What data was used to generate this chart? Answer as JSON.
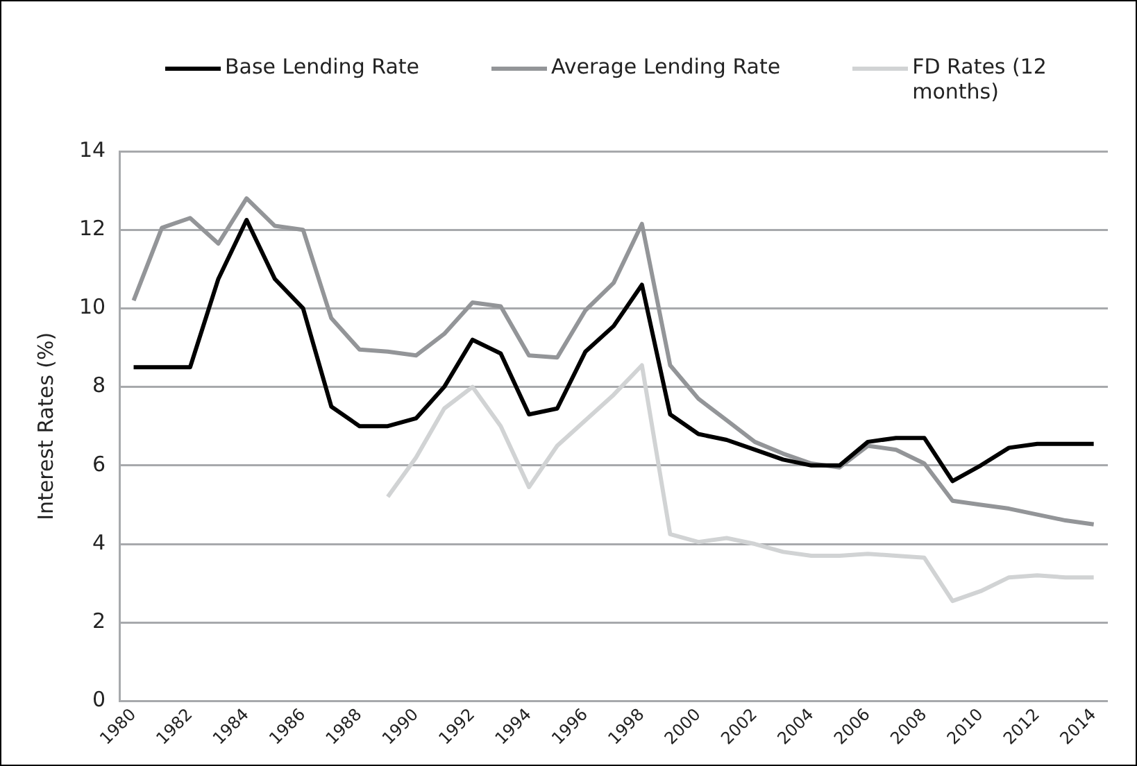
{
  "chart_data": {
    "type": "line",
    "ylabel": "Interest Rates (%)",
    "categories": [
      "1980",
      null,
      "1982",
      null,
      "1984",
      null,
      "1986",
      null,
      "1988",
      null,
      "1990",
      null,
      "1992",
      null,
      "1994",
      null,
      "1996",
      null,
      "1998",
      null,
      "2000",
      null,
      "2002",
      null,
      "2004",
      null,
      "2006",
      null,
      "2008",
      null,
      "2010",
      null,
      "2012",
      null,
      "2014"
    ],
    "series": [
      {
        "name": "Base Lending Rate",
        "color": "#000000",
        "values": [
          8.5,
          8.5,
          8.5,
          10.75,
          12.25,
          10.75,
          10.0,
          7.5,
          7.0,
          7.0,
          7.2,
          8.0,
          9.2,
          8.85,
          7.3,
          7.45,
          8.9,
          9.55,
          10.6,
          7.3,
          6.8,
          6.65,
          6.4,
          6.15,
          6.0,
          6.0,
          6.6,
          6.7,
          6.7,
          5.6,
          6.0,
          6.45,
          6.55,
          6.55,
          6.55
        ]
      },
      {
        "name": "Average Lending Rate",
        "color": "#939598",
        "values": [
          10.2,
          12.05,
          12.3,
          11.65,
          12.8,
          12.1,
          12.0,
          9.75,
          8.95,
          8.9,
          8.8,
          9.35,
          10.15,
          10.05,
          8.8,
          8.75,
          9.95,
          10.65,
          12.15,
          8.55,
          7.7,
          7.15,
          6.6,
          6.3,
          6.05,
          5.95,
          6.5,
          6.4,
          6.05,
          5.1,
          5.0,
          4.9,
          4.75,
          4.6,
          4.5
        ]
      },
      {
        "name": "FD Rates (12 months)",
        "color": "#d1d3d4",
        "values": [
          null,
          null,
          null,
          null,
          null,
          null,
          null,
          null,
          null,
          5.2,
          6.2,
          7.45,
          8.0,
          7.0,
          5.45,
          6.5,
          7.15,
          7.8,
          8.55,
          4.25,
          4.05,
          4.15,
          4.0,
          3.8,
          3.7,
          3.7,
          3.75,
          3.7,
          3.65,
          2.55,
          2.8,
          3.15,
          3.2,
          3.15,
          3.15
        ]
      }
    ],
    "ylim": [
      0,
      14
    ],
    "yticks": [
      0,
      2,
      4,
      6,
      8,
      10,
      12,
      14
    ],
    "grid": "y",
    "legend": "top",
    "marker": "none",
    "line_style": "solid"
  }
}
